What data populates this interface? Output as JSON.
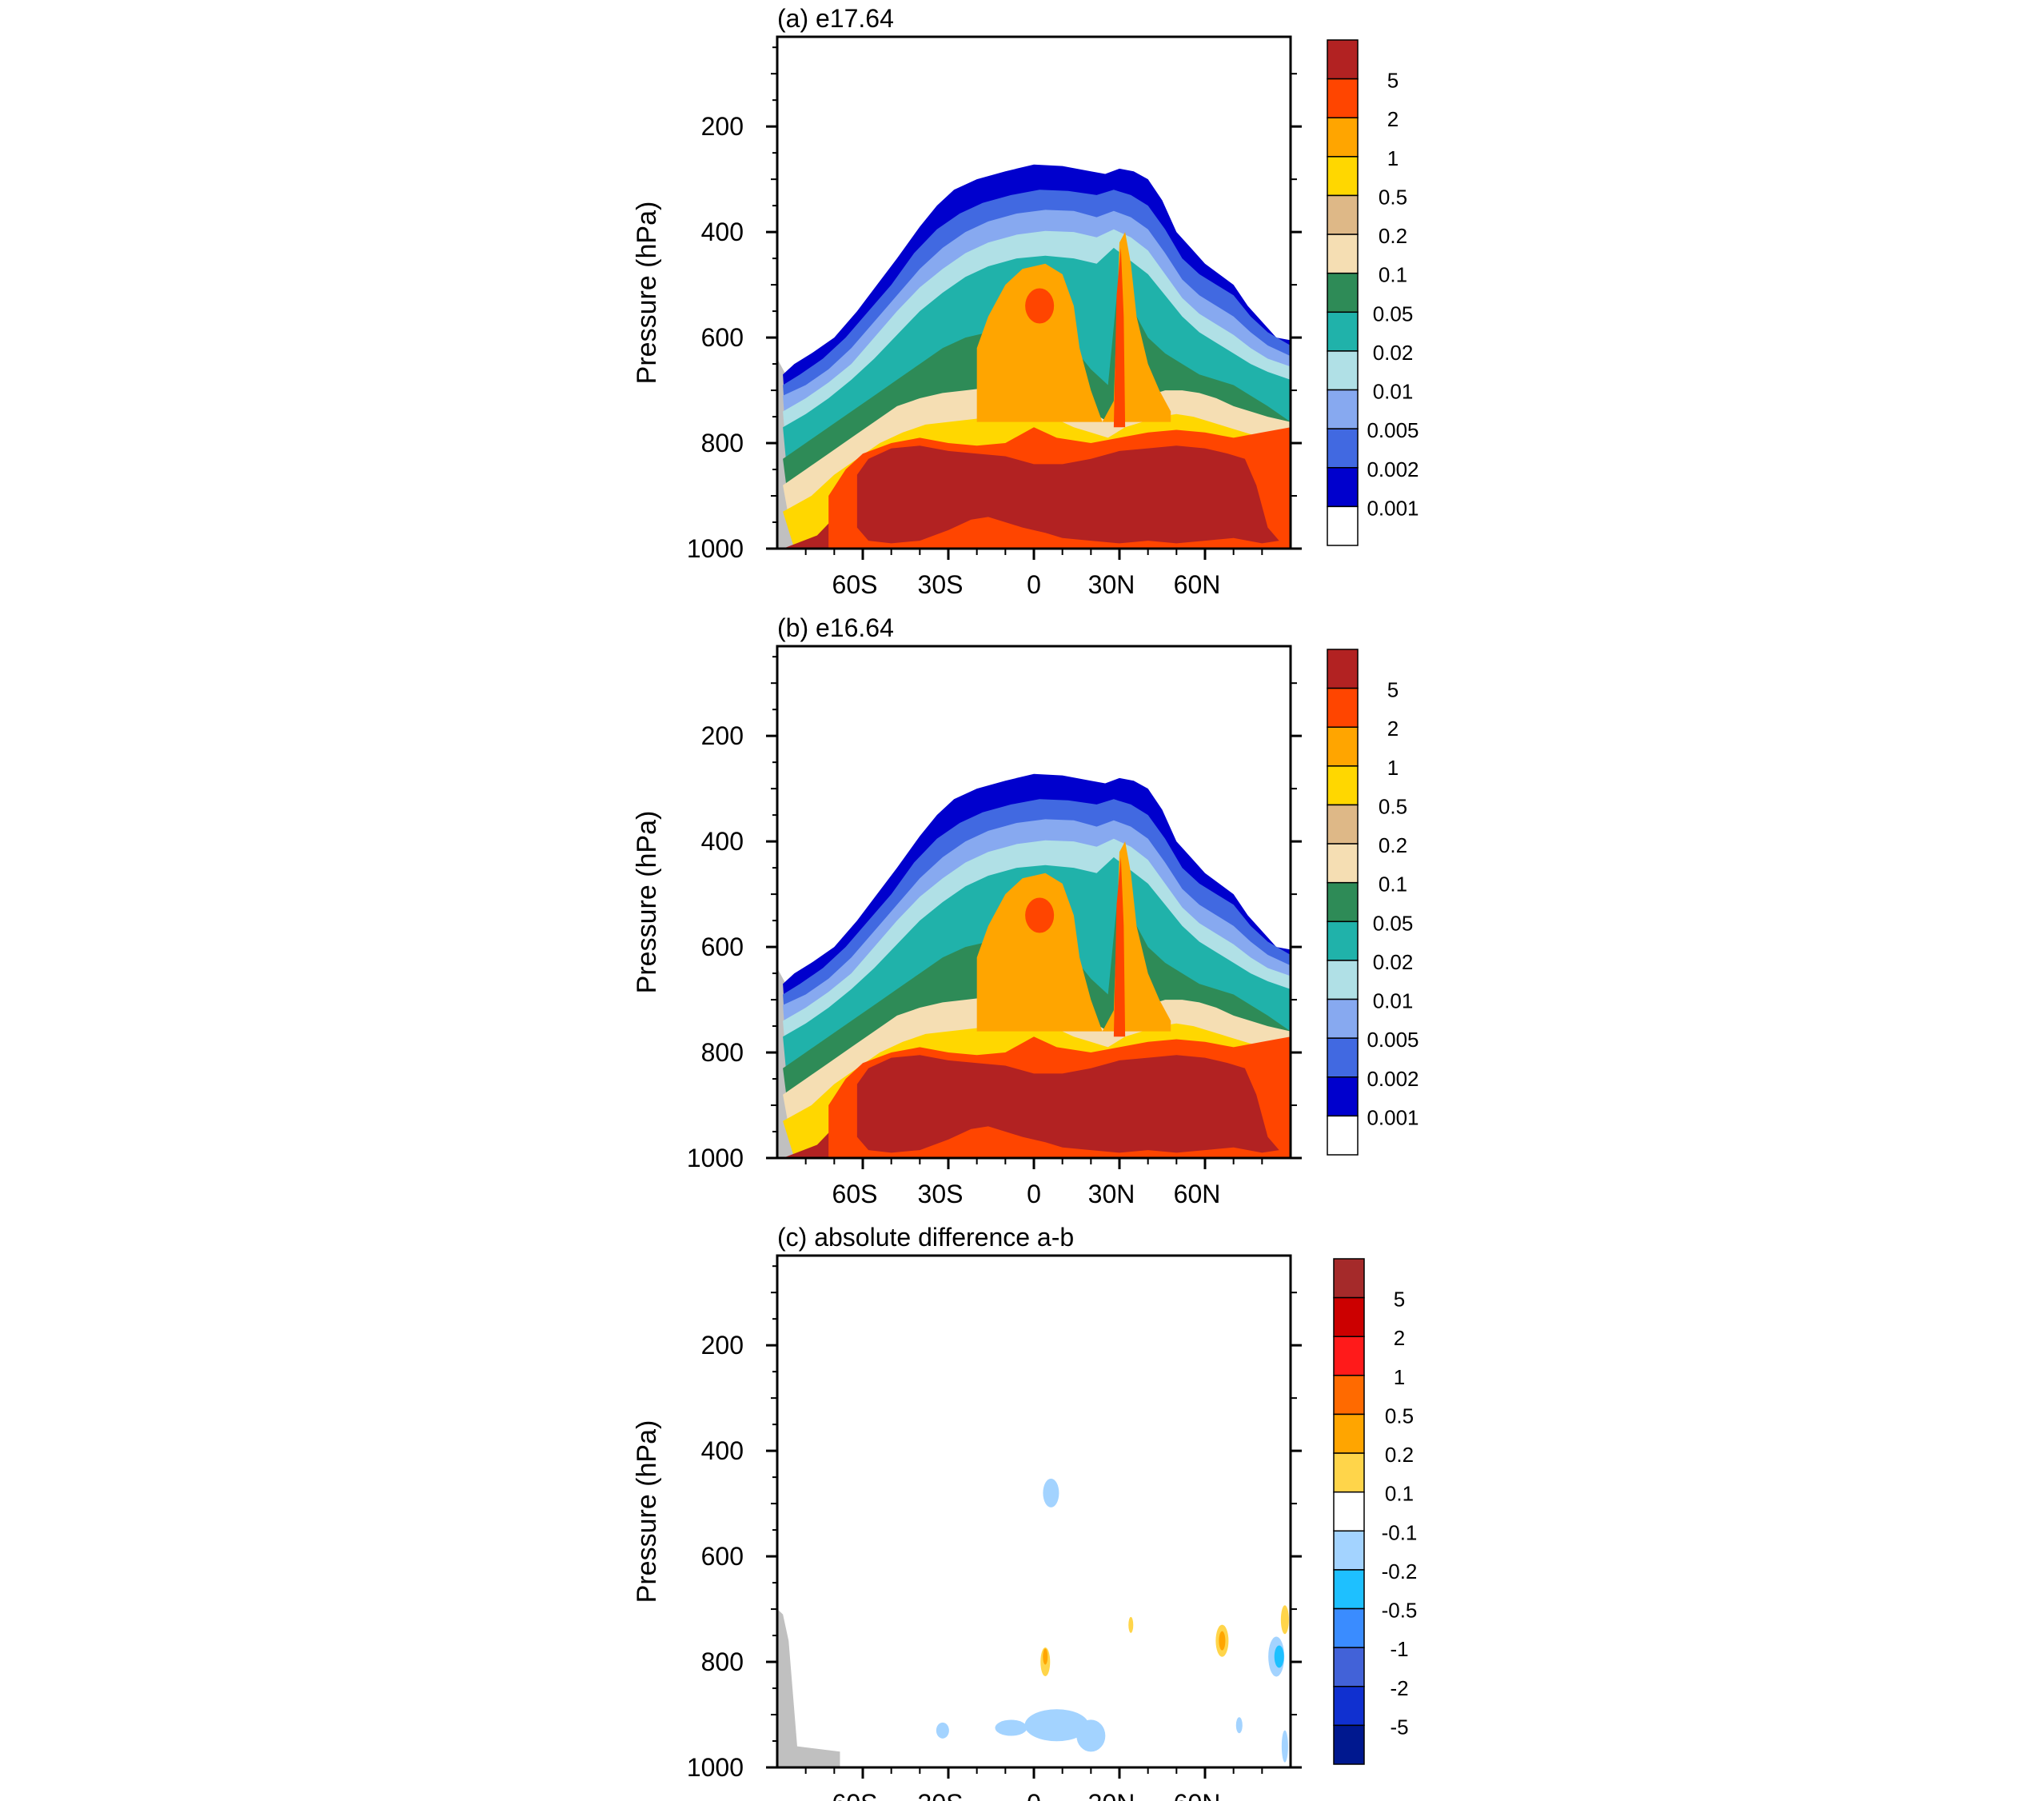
{
  "chart_data": [
    {
      "type": "heatmap",
      "title": "(a) e17.64",
      "ylabel": "Pressure (hPa)",
      "xlabel": "",
      "x_ticks": [
        "60S",
        "30S",
        "0",
        "30N",
        "60N"
      ],
      "y_ticks": [
        "200",
        "400",
        "600",
        "800",
        "1000"
      ],
      "ylim": [
        1000,
        30
      ],
      "xlim": [
        "90S",
        "90N"
      ],
      "colorbar": {
        "labels": [
          "5",
          "2",
          "1",
          "0.5",
          "0.2",
          "0.1",
          "0.05",
          "0.02",
          "0.01",
          "0.005",
          "0.002",
          "0.001"
        ],
        "colors": [
          "#b22222",
          "#ff4500",
          "#ffa500",
          "#ffd700",
          "#deb887",
          "#f5deb3",
          "#2e8b57",
          "#20b2aa",
          "#b0e0e6",
          "#87a9f0",
          "#4169e1",
          "#0000cd",
          "#ffffff"
        ]
      },
      "description_levels": {
        "top_boundary_hPa": [
          660,
          600,
          510,
          400,
          300,
          260,
          290,
          330,
          480,
          610
        ],
        "top_boundary_lat": [
          -88,
          -70,
          -55,
          -40,
          -25,
          0,
          30,
          45,
          65,
          88
        ]
      }
    },
    {
      "type": "heatmap",
      "title": "(b) e16.64",
      "ylabel": "Pressure (hPa)",
      "xlabel": "",
      "x_ticks": [
        "60S",
        "30S",
        "0",
        "30N",
        "60N"
      ],
      "y_ticks": [
        "200",
        "400",
        "600",
        "800",
        "1000"
      ],
      "ylim": [
        1000,
        30
      ],
      "xlim": [
        "90S",
        "90N"
      ],
      "colorbar": {
        "labels": [
          "5",
          "2",
          "1",
          "0.5",
          "0.2",
          "0.1",
          "0.05",
          "0.02",
          "0.01",
          "0.005",
          "0.002",
          "0.001"
        ],
        "colors": [
          "#b22222",
          "#ff4500",
          "#ffa500",
          "#ffd700",
          "#deb887",
          "#f5deb3",
          "#2e8b57",
          "#20b2aa",
          "#b0e0e6",
          "#87a9f0",
          "#4169e1",
          "#0000cd",
          "#ffffff"
        ]
      }
    },
    {
      "type": "heatmap",
      "title": "(c) absolute difference a-b",
      "ylabel": "Pressure (hPa)",
      "xlabel": "",
      "x_ticks": [
        "60S",
        "30S",
        "0",
        "30N",
        "60N"
      ],
      "y_ticks": [
        "200",
        "400",
        "600",
        "800",
        "1000"
      ],
      "ylim": [
        1000,
        30
      ],
      "xlim": [
        "90S",
        "90N"
      ],
      "colorbar": {
        "labels": [
          "5",
          "2",
          "1",
          "0.5",
          "0.2",
          "0.1",
          "-0.1",
          "-0.2",
          "-0.5",
          "-1",
          "-2",
          "-5"
        ],
        "colors": [
          "#a52a2a",
          "#cc0000",
          "#ff1a1a",
          "#ff6a00",
          "#ffa500",
          "#ffd54a",
          "#ffffff",
          "#a3d3ff",
          "#1ec0ff",
          "#3a8cff",
          "#4262d8",
          "#1030d0",
          "#00188f"
        ]
      }
    }
  ]
}
